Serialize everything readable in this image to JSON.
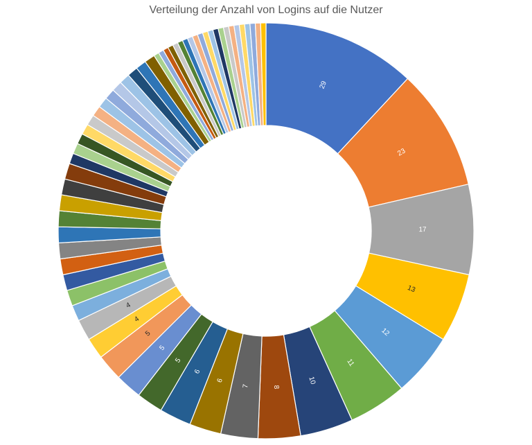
{
  "chart_data": {
    "type": "pie",
    "variant": "doughnut",
    "title": "Verteilung der Anzahl von Logins auf die Nutzer",
    "values": [
      29,
      23,
      17,
      13,
      12,
      11,
      10,
      8,
      7,
      6,
      6,
      5,
      5,
      5,
      4,
      4,
      3,
      3,
      3,
      3,
      3,
      3,
      3,
      3,
      3,
      3,
      2,
      2,
      2,
      2,
      2,
      2,
      2,
      2,
      2,
      2,
      2,
      2,
      2,
      1,
      1,
      1,
      1,
      1,
      1,
      1,
      1,
      1,
      1,
      1,
      1,
      1,
      1,
      1,
      1,
      1,
      1,
      1,
      1,
      1,
      1
    ],
    "data_labels": [
      "29",
      "23",
      "17",
      "13",
      "12",
      "11",
      "10",
      "8",
      "7",
      "6",
      "6",
      "5",
      "5",
      "5",
      "4",
      "4",
      "",
      "",
      "",
      "",
      "",
      "",
      "",
      "",
      "",
      "",
      "",
      "",
      "",
      "",
      "",
      "",
      "",
      "",
      "",
      "",
      "",
      "",
      "",
      "",
      "",
      "",
      "",
      "",
      "",
      "",
      "",
      "",
      "",
      "",
      "",
      "",
      "",
      "",
      "",
      "",
      "",
      "",
      "",
      "",
      ""
    ],
    "colors": [
      "#4472C4",
      "#ED7D31",
      "#A5A5A5",
      "#FFC000",
      "#5B9BD5",
      "#70AD47",
      "#264478",
      "#9E480E",
      "#636363",
      "#997300",
      "#255E91",
      "#43682B",
      "#698ED0",
      "#F1975A",
      "#FFCD33",
      "#B7B7B7",
      "#7CAFDD",
      "#8CC168",
      "#335AA1",
      "#D26012",
      "#848484",
      "#2E75B6",
      "#548235",
      "#C9A000",
      "#3F3F3F",
      "#843C0C",
      "#1F3864",
      "#A9D18E",
      "#375623",
      "#FFD966",
      "#C9C9C9",
      "#F4B183",
      "#9DC3E6",
      "#8FAADC",
      "#B4C7E7",
      "#9DC3E6",
      "#1F4E79",
      "#2E75B6",
      "#806000",
      "#A9D18E",
      "#8FAADC",
      "#C55A11",
      "#7F6000",
      "#C9C9C9",
      "#548235",
      "#2E75B6",
      "#B4C7E7",
      "#F4B183",
      "#8FAADC",
      "#FFD966",
      "#9DC3E6",
      "#1F3864",
      "#A9D18E",
      "#C9C9C9",
      "#F4B183",
      "#B4C7E7",
      "#FFD966",
      "#9DC3E6",
      "#8FAADC",
      "#F4B183",
      "#FFC000"
    ]
  }
}
